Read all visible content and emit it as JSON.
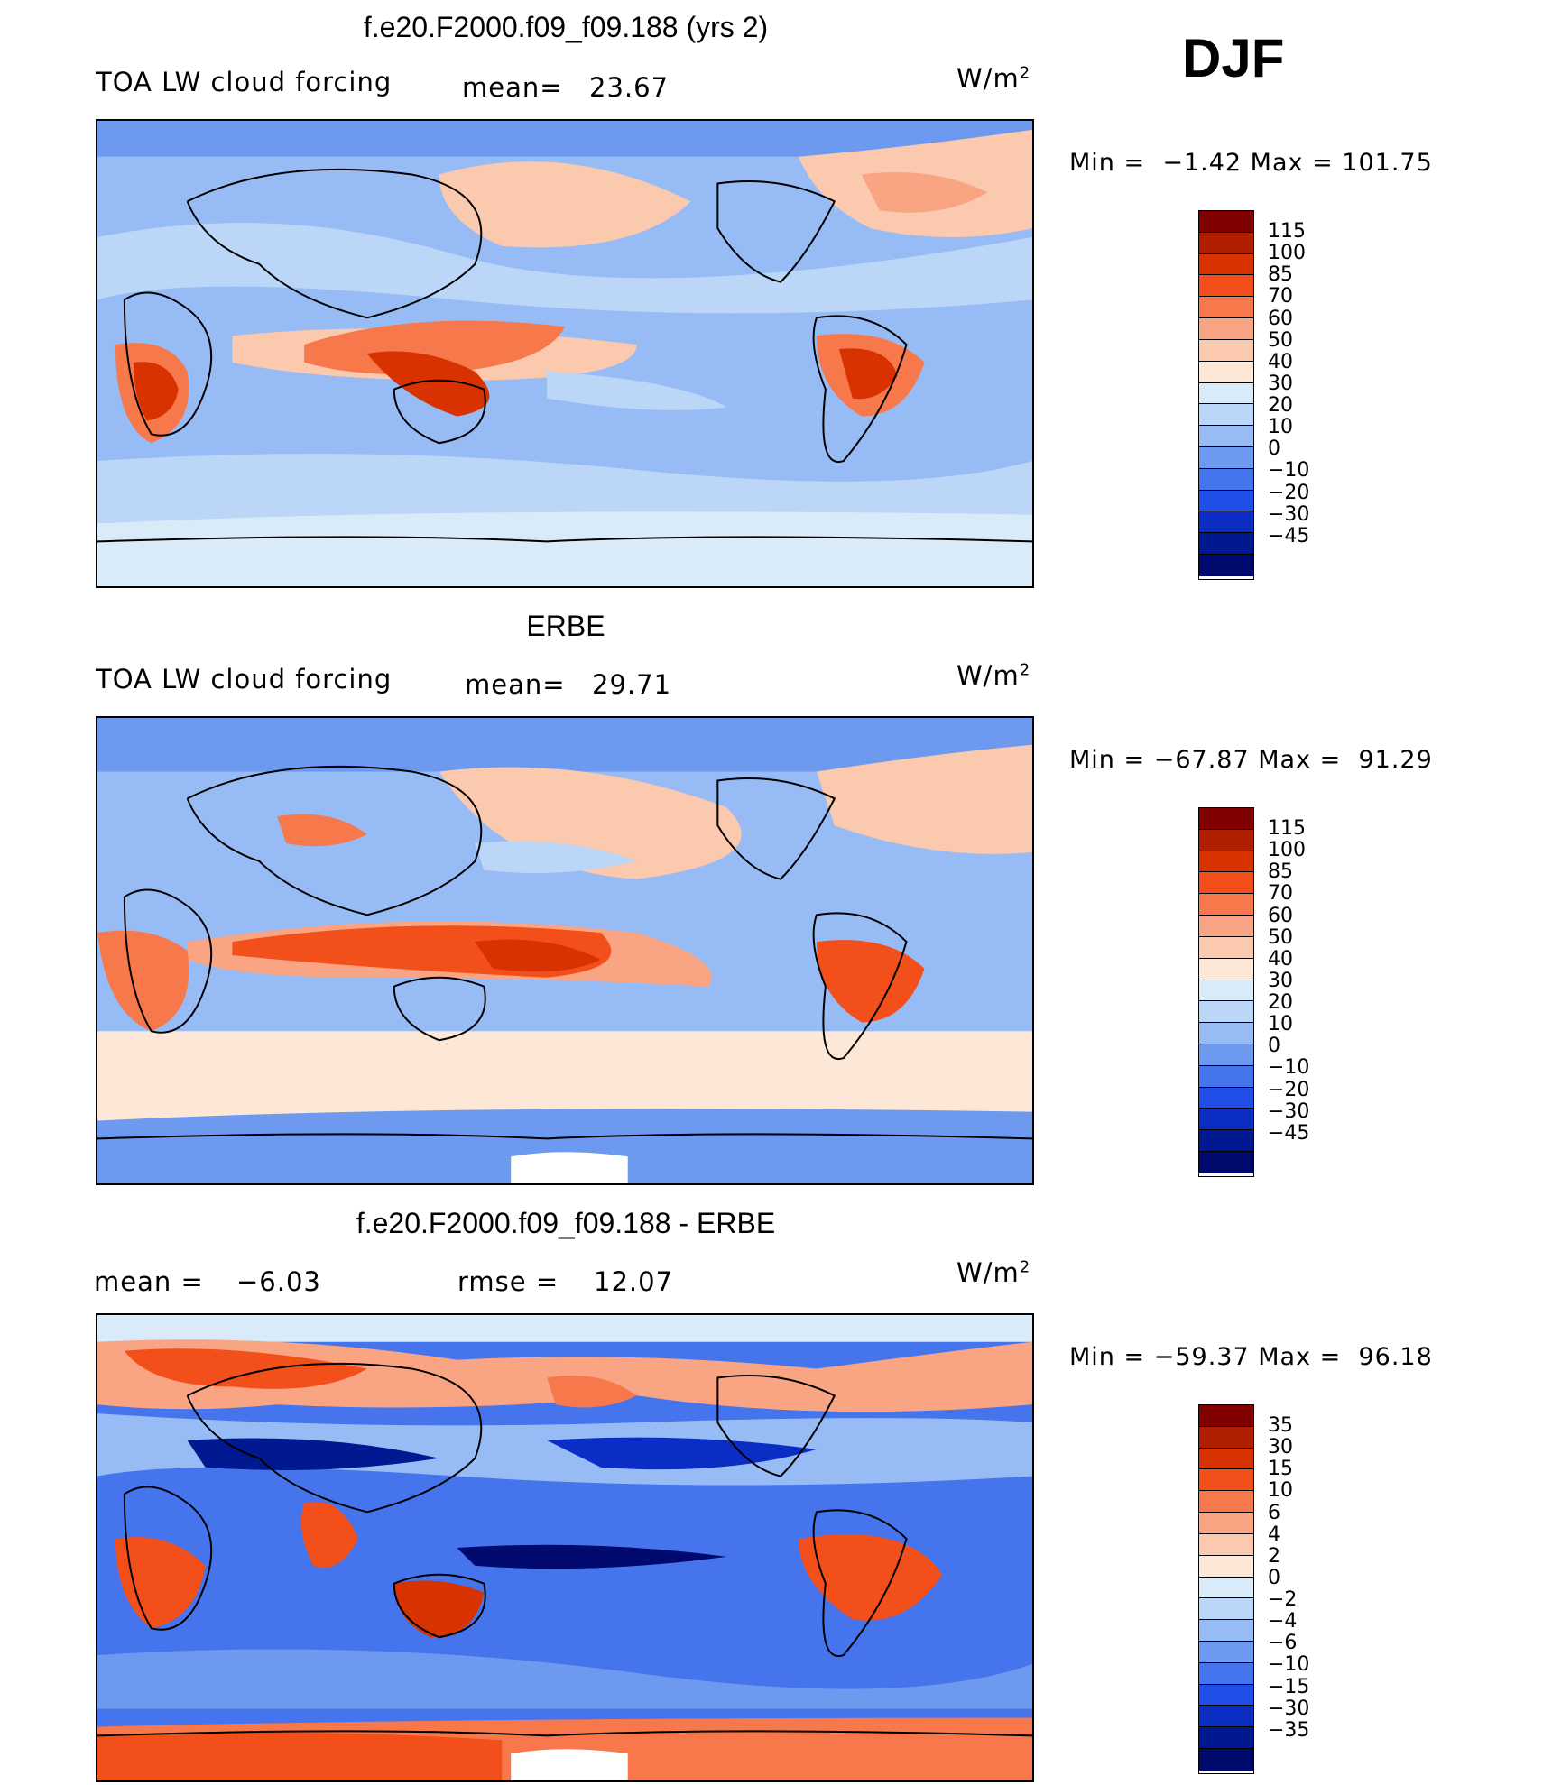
{
  "season": "DJF",
  "unit": "W/m",
  "unit_sup": "2",
  "panels": [
    {
      "title": "f.e20.F2000.f09_f09.188 (yrs 2)",
      "left_label": "TOA LW cloud forcing",
      "stat_label": "mean=",
      "stat_value": "23.67",
      "min": "−1.42",
      "max": "101.75"
    },
    {
      "title": "ERBE",
      "left_label": "TOA LW cloud forcing",
      "stat_label": "mean=",
      "stat_value": "29.71",
      "min": "−67.87",
      "max": "91.29"
    },
    {
      "title": "f.e20.F2000.f09_f09.188 - ERBE",
      "left_label": "mean =",
      "left_value": "−6.03",
      "stat_label": "rmse =",
      "stat_value": "12.07",
      "min": "−59.37",
      "max": "96.18"
    }
  ],
  "minmax_labels": {
    "min": "Min",
    "max": "Max",
    "eq": "="
  },
  "colorbar_abs": {
    "levels": [
      "115",
      "100",
      "85",
      "70",
      "60",
      "50",
      "40",
      "30",
      "20",
      "10",
      "0",
      "−10",
      "−20",
      "−30",
      "−45"
    ],
    "colors": [
      "#800000",
      "#b01e00",
      "#d83200",
      "#f24f1a",
      "#f7784a",
      "#f9a483",
      "#fbc9ae",
      "#fde8d8",
      "#d9eaf9",
      "#bcd6f7",
      "#97bcf5",
      "#6d99ef",
      "#4674ec",
      "#1f4fe6",
      "#0a2dc4",
      "#001890",
      "#000a6e"
    ]
  },
  "colorbar_diff": {
    "levels": [
      "35",
      "30",
      "15",
      "10",
      "6",
      "4",
      "2",
      "0",
      "−2",
      "−4",
      "−6",
      "−10",
      "−15",
      "−30",
      "−35"
    ],
    "colors": [
      "#800000",
      "#b01e00",
      "#d83200",
      "#f24f1a",
      "#f7784a",
      "#f9a483",
      "#fbc9ae",
      "#fde8d8",
      "#d9eaf9",
      "#bcd6f7",
      "#97bcf5",
      "#6d99ef",
      "#4674ec",
      "#1f4fe6",
      "#0a2dc4",
      "#001890",
      "#000a6e"
    ]
  }
}
